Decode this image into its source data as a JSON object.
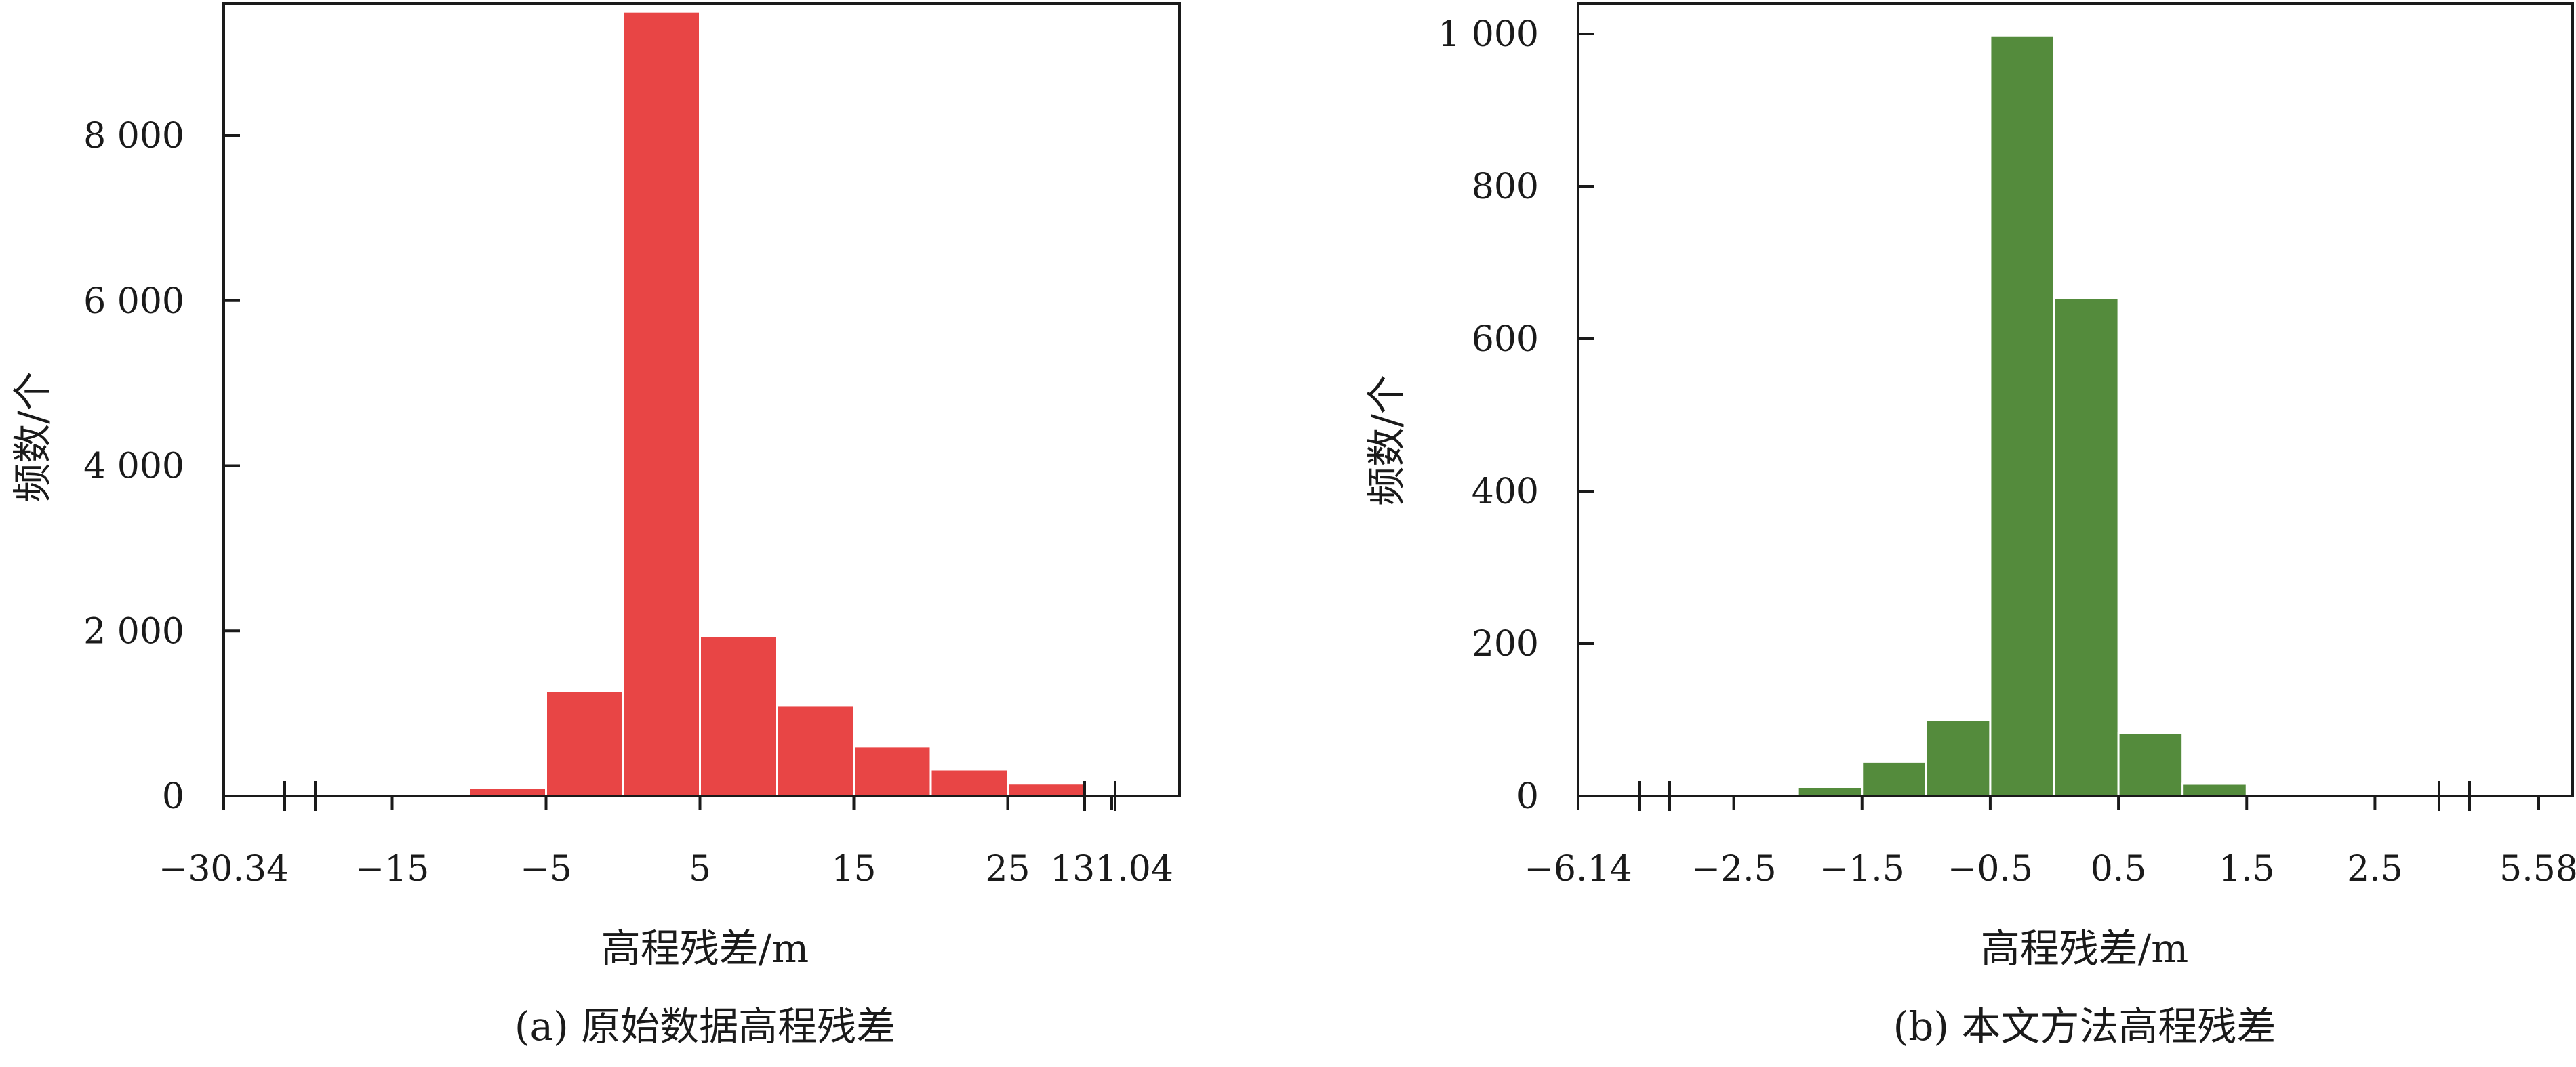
{
  "chart_data": [
    {
      "type": "bar",
      "caption": "(a) 原始数据高程残差",
      "xlabel": "高程残差/m",
      "ylabel": "频数/个",
      "color": "#e84545",
      "ylim": [
        0,
        9600
      ],
      "yticks": [
        0,
        2000,
        4000,
        6000,
        8000
      ],
      "ytick_labels": [
        "0",
        "2 000",
        "4 000",
        "6 000",
        "8 000"
      ],
      "x_break_labels": [
        "−30.34",
        "131.04"
      ],
      "x_inner_range": [
        -20,
        30
      ],
      "x_inner_ticks": [
        -15,
        -5,
        5,
        15,
        25
      ],
      "x_inner_tick_labels": [
        "−15",
        "−5",
        "5",
        "15",
        "25"
      ],
      "bins": [
        {
          "x0": -10,
          "x1": -5,
          "value": 100
        },
        {
          "x0": -5,
          "x1": 0,
          "value": 1270
        },
        {
          "x0": 0,
          "x1": 5,
          "value": 9500
        },
        {
          "x0": 5,
          "x1": 10,
          "value": 1940
        },
        {
          "x0": 10,
          "x1": 15,
          "value": 1100
        },
        {
          "x0": 15,
          "x1": 20,
          "value": 600
        },
        {
          "x0": 20,
          "x1": 25,
          "value": 320
        },
        {
          "x0": 25,
          "x1": 30,
          "value": 150
        }
      ]
    },
    {
      "type": "bar",
      "caption": "(b) 本文方法高程残差",
      "xlabel": "高程残差/m",
      "ylabel": "频数/个",
      "color": "#548b3c",
      "ylim": [
        0,
        1040
      ],
      "yticks": [
        0,
        200,
        400,
        600,
        800,
        1000
      ],
      "ytick_labels": [
        "0",
        "200",
        "400",
        "600",
        "800",
        "1 000"
      ],
      "x_break_labels": [
        "−6.14",
        "5.58"
      ],
      "x_inner_range": [
        -3,
        3
      ],
      "x_inner_ticks": [
        -2.5,
        -1.5,
        -0.5,
        0.5,
        1.5,
        2.5
      ],
      "x_inner_tick_labels": [
        "−2.5",
        "−1.5",
        "−0.5",
        "0.5",
        "1.5",
        "2.5"
      ],
      "bins": [
        {
          "x0": -2,
          "x1": -1.5,
          "value": 12
        },
        {
          "x0": -1.5,
          "x1": -1,
          "value": 45
        },
        {
          "x0": -1,
          "x1": -0.5,
          "value": 100
        },
        {
          "x0": -0.5,
          "x1": 0,
          "value": 998
        },
        {
          "x0": 0,
          "x1": 0.5,
          "value": 653
        },
        {
          "x0": 0.5,
          "x1": 1,
          "value": 83
        },
        {
          "x0": 1,
          "x1": 1.5,
          "value": 16
        }
      ]
    }
  ]
}
